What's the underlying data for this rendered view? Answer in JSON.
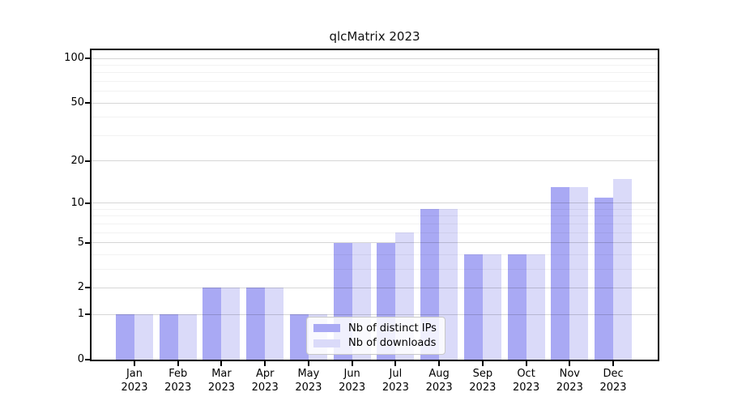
{
  "chart_data": {
    "type": "bar",
    "title": "qlcMatrix 2023",
    "categories": [
      "Jan 2023",
      "Feb 2023",
      "Mar 2023",
      "Apr 2023",
      "May 2023",
      "Jun 2023",
      "Jul 2023",
      "Aug 2023",
      "Sep 2023",
      "Oct 2023",
      "Nov 2023",
      "Dec 2023"
    ],
    "category_top_lines": [
      "Jan",
      "Feb",
      "Mar",
      "Apr",
      "May",
      "Jun",
      "Jul",
      "Aug",
      "Sep",
      "Oct",
      "Nov",
      "Dec"
    ],
    "category_bottom_line": "2023",
    "series": [
      {
        "name": "Nb of distinct IPs",
        "color": "#a9a9f4",
        "values": [
          1,
          1,
          2,
          2,
          1,
          5,
          5,
          9,
          4,
          4,
          13,
          11
        ]
      },
      {
        "name": "Nb of downloads",
        "color": "#dadaf9",
        "values": [
          1,
          1,
          2,
          2,
          1,
          5,
          6,
          9,
          4,
          4,
          13,
          15
        ]
      }
    ],
    "xlabel": "",
    "ylabel": "",
    "y_scale": "log1p",
    "ylim": [
      0,
      113.5
    ],
    "y_major_ticks": [
      0,
      1,
      2,
      5,
      10,
      20,
      50,
      100
    ],
    "y_minor_gridlines": [
      3,
      4,
      6,
      7,
      8,
      9,
      30,
      40,
      60,
      70,
      80,
      90
    ],
    "grid": "horizontal-major-and-minor-drawn-over-bars",
    "legend_position": "inside-bottom-center",
    "colors": {
      "axis": "#000000",
      "major_grid": "rgba(0,0,0,0.16)",
      "minor_grid": "rgba(0,0,0,0.05)",
      "background": "#ffffff"
    }
  }
}
